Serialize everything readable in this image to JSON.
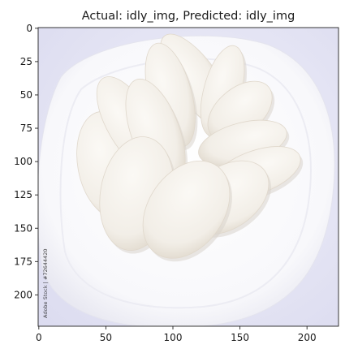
{
  "chart_data": {
    "type": "image",
    "title": "Actual: idly_img, Predicted: idly_img",
    "image": {
      "subject": "idli cakes arranged in a circle on a white plate",
      "watermark": "Adobe Stock | #72644420"
    },
    "xlim": [
      0,
      224
    ],
    "ylim": [
      224,
      0
    ],
    "x_ticks": [
      0,
      50,
      100,
      150,
      200
    ],
    "y_ticks": [
      0,
      25,
      50,
      75,
      100,
      125,
      150,
      175,
      200
    ],
    "colors": {
      "background": "#e8e8f6",
      "plate": "#fbfbfd",
      "idli": "#f3efe9",
      "idli_shadow": "#e2dbd0",
      "axis": "#222222"
    }
  }
}
